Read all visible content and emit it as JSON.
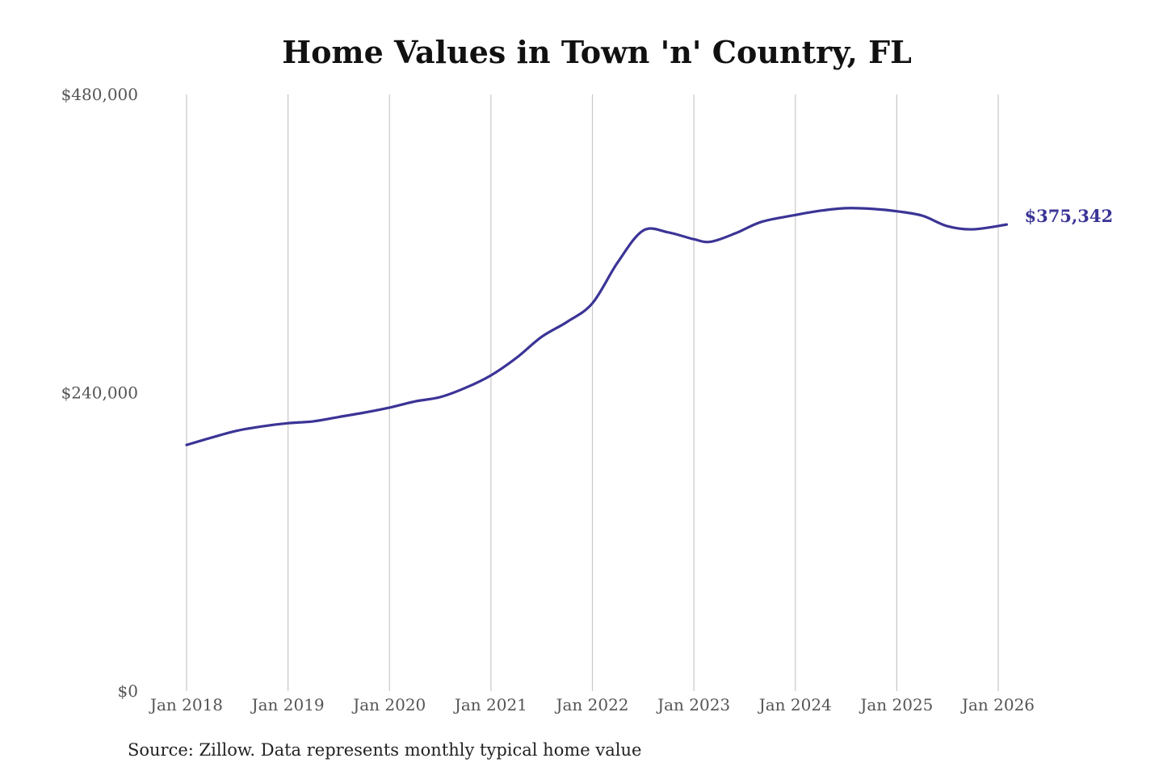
{
  "chart_data": {
    "type": "line",
    "title": "Home Values in Town 'n' Country, FL",
    "source": "Source: Zillow. Data represents monthly typical home value",
    "xlabel": "",
    "ylabel": "",
    "ylim": [
      0,
      480000
    ],
    "yticks": [
      {
        "value": 0,
        "label": "$0"
      },
      {
        "value": 240000,
        "label": "$240,000"
      },
      {
        "value": 480000,
        "label": "$480,000"
      }
    ],
    "xticks": [
      {
        "value": 2018,
        "label": "Jan 2018"
      },
      {
        "value": 2019,
        "label": "Jan 2019"
      },
      {
        "value": 2020,
        "label": "Jan 2020"
      },
      {
        "value": 2021,
        "label": "Jan 2021"
      },
      {
        "value": 2022,
        "label": "Jan 2022"
      },
      {
        "value": 2023,
        "label": "Jan 2023"
      },
      {
        "value": 2024,
        "label": "Jan 2024"
      },
      {
        "value": 2025,
        "label": "Jan 2025"
      },
      {
        "value": 2026,
        "label": "Jan 2026"
      }
    ],
    "grid": "vertical",
    "line_color": "#3b3496",
    "end_label": "$375,342",
    "series": [
      {
        "x": [
          "2018-01",
          "2018-04",
          "2018-07",
          "2018-10",
          "2019-01",
          "2019-04",
          "2019-07",
          "2019-10",
          "2020-01",
          "2020-04",
          "2020-07",
          "2020-10",
          "2021-01",
          "2021-04",
          "2021-07",
          "2021-10",
          "2022-01",
          "2022-04",
          "2022-07",
          "2022-10",
          "2023-01",
          "2023-03",
          "2023-06",
          "2023-09",
          "2024-01",
          "2024-04",
          "2024-07",
          "2024-10",
          "2025-01",
          "2025-04",
          "2025-07",
          "2025-10",
          "2026-02"
        ],
        "values": [
          198000,
          204000,
          209500,
          213000,
          215500,
          217000,
          220500,
          224000,
          228000,
          233000,
          236500,
          244000,
          254000,
          268000,
          285000,
          297000,
          312000,
          345000,
          370500,
          369000,
          363500,
          361500,
          368500,
          377500,
          383000,
          386500,
          388500,
          388000,
          386000,
          382500,
          374000,
          371500,
          375342
        ]
      }
    ]
  }
}
